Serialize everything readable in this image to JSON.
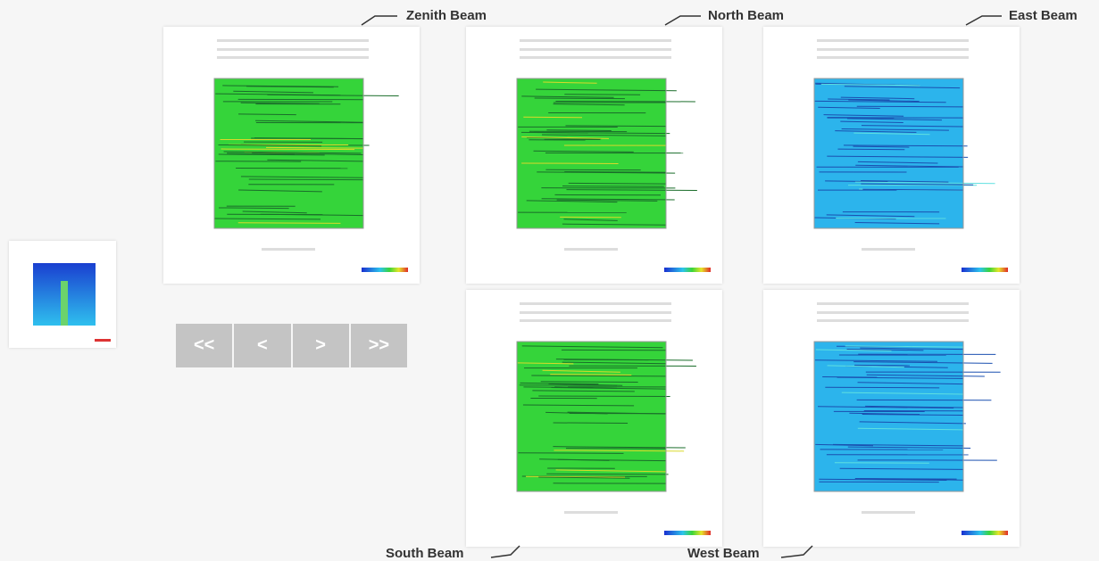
{
  "beams": [
    "Zenith Beam",
    "North Beam",
    "East Beam",
    "South Beam",
    "West Beam"
  ],
  "nav": {
    "buttons": [
      "<<",
      "<",
      ">",
      ">>"
    ]
  }
}
